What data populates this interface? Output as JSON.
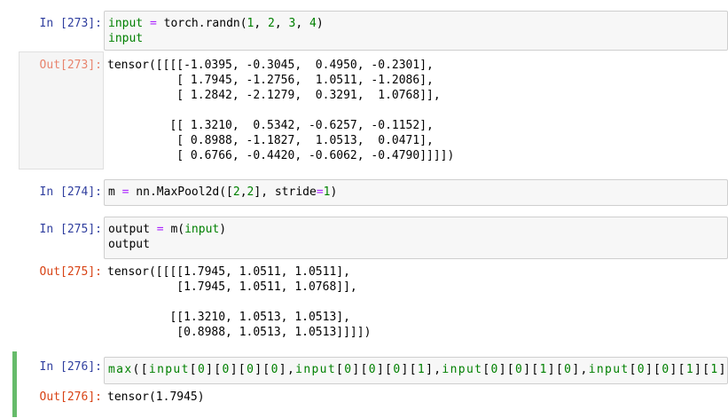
{
  "cells": [
    {
      "in_prompt": "In [273]:",
      "code": [
        [
          {
            "t": "input",
            "c": "k"
          },
          {
            "t": " "
          },
          {
            "t": "=",
            "c": "o"
          },
          {
            "t": " torch.randn("
          },
          {
            "t": "1",
            "c": "m"
          },
          {
            "t": ", "
          },
          {
            "t": "2",
            "c": "m"
          },
          {
            "t": ", "
          },
          {
            "t": "3",
            "c": "m"
          },
          {
            "t": ", "
          },
          {
            "t": "4",
            "c": "m"
          },
          {
            "t": ")"
          }
        ],
        [
          {
            "t": "input",
            "c": "k"
          }
        ]
      ],
      "out_prompt": "Out[273]:",
      "output": "tensor([[[[-1.0395, -0.3045,  0.4950, -0.2301],\n          [ 1.7945, -1.2756,  1.0511, -1.2086],\n          [ 1.2842, -2.1279,  0.3291,  1.0768]],\n\n         [[ 1.3210,  0.5342, -0.6257, -0.1152],\n          [ 0.8988, -1.1827,  1.0513,  0.0471],\n          [ 0.6766, -0.4420, -0.6062, -0.4790]]]])"
    },
    {
      "in_prompt": "In [274]:",
      "code": [
        [
          {
            "t": "m "
          },
          {
            "t": "=",
            "c": "o"
          },
          {
            "t": " nn.MaxPool2d(["
          },
          {
            "t": "2",
            "c": "m"
          },
          {
            "t": ","
          },
          {
            "t": "2",
            "c": "m"
          },
          {
            "t": "], stride"
          },
          {
            "t": "=",
            "c": "o"
          },
          {
            "t": "1",
            "c": "m"
          },
          {
            "t": ")"
          }
        ]
      ]
    },
    {
      "in_prompt": "In [275]:",
      "code": [
        [
          {
            "t": "output "
          },
          {
            "t": "=",
            "c": "o"
          },
          {
            "t": " m("
          },
          {
            "t": "input",
            "c": "k"
          },
          {
            "t": ")"
          }
        ],
        [
          {
            "t": "output"
          }
        ]
      ],
      "out_prompt": "Out[275]:",
      "output": "tensor([[[[1.7945, 1.0511, 1.0511],\n          [1.7945, 1.0511, 1.0768]],\n\n         [[1.3210, 1.0513, 1.0513],\n          [0.8988, 1.0513, 1.0513]]]])"
    },
    {
      "in_prompt": "In [276]:",
      "code": [
        [
          {
            "t": "max",
            "c": "k"
          },
          {
            "t": "(["
          },
          {
            "t": "input",
            "c": "k"
          },
          {
            "t": "["
          },
          {
            "t": "0",
            "c": "m"
          },
          {
            "t": "]["
          },
          {
            "t": "0",
            "c": "m"
          },
          {
            "t": "]["
          },
          {
            "t": "0",
            "c": "m"
          },
          {
            "t": "]["
          },
          {
            "t": "0",
            "c": "m"
          },
          {
            "t": "],"
          },
          {
            "t": "input",
            "c": "k"
          },
          {
            "t": "["
          },
          {
            "t": "0",
            "c": "m"
          },
          {
            "t": "]["
          },
          {
            "t": "0",
            "c": "m"
          },
          {
            "t": "]["
          },
          {
            "t": "0",
            "c": "m"
          },
          {
            "t": "]["
          },
          {
            "t": "1",
            "c": "m"
          },
          {
            "t": "],"
          },
          {
            "t": "input",
            "c": "k"
          },
          {
            "t": "["
          },
          {
            "t": "0",
            "c": "m"
          },
          {
            "t": "]["
          },
          {
            "t": "0",
            "c": "m"
          },
          {
            "t": "]["
          },
          {
            "t": "1",
            "c": "m"
          },
          {
            "t": "]["
          },
          {
            "t": "0",
            "c": "m"
          },
          {
            "t": "],"
          },
          {
            "t": "input",
            "c": "k"
          },
          {
            "t": "["
          },
          {
            "t": "0",
            "c": "m"
          },
          {
            "t": "]["
          },
          {
            "t": "0",
            "c": "m"
          },
          {
            "t": "]["
          },
          {
            "t": "1",
            "c": "m"
          },
          {
            "t": "]["
          },
          {
            "t": "1",
            "c": "m"
          },
          {
            "t": "]])"
          }
        ]
      ],
      "out_prompt": "Out[276]:",
      "output": "tensor(1.7945)"
    }
  ],
  "colors": {
    "in_prompt": "#303f9f",
    "out_prompt": "#d84315",
    "selected_border": "#66bb6a",
    "code_green": "#008000",
    "operator": "#aa22ff"
  }
}
